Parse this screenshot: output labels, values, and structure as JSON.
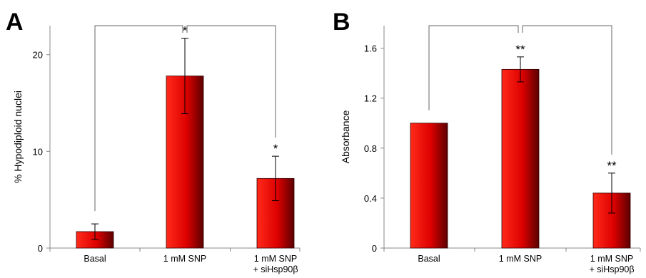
{
  "panels": [
    {
      "panel_label": "A",
      "chart_data": {
        "type": "bar",
        "ylabel": "% Hypodiploid nuclei",
        "xlabel": "",
        "ylim": [
          0,
          23
        ],
        "yticks": [
          0,
          10,
          20
        ],
        "categories": [
          [
            "Basal"
          ],
          [
            "1 mM SNP"
          ],
          [
            "1 mM SNP",
            "+ siHsp90β"
          ]
        ],
        "values": [
          1.7,
          17.8,
          7.2
        ],
        "errors": [
          0.8,
          3.9,
          2.3
        ],
        "significance": [
          "",
          "*",
          "*"
        ],
        "bar_color": "#dd0000",
        "comparison_brackets": [
          {
            "from": 0,
            "to": 1
          },
          {
            "from": 1,
            "to": 2
          }
        ]
      }
    },
    {
      "panel_label": "B",
      "chart_data": {
        "type": "bar",
        "ylabel": "Absorbance",
        "xlabel": "",
        "ylim": [
          0,
          1.78
        ],
        "yticks": [
          0,
          0.4,
          0.8,
          1.2,
          1.6
        ],
        "categories": [
          [
            "Basal"
          ],
          [
            "1 mM SNP"
          ],
          [
            "1 mM SNP",
            "+ siHsp90β"
          ]
        ],
        "values": [
          1.0,
          1.43,
          0.44
        ],
        "errors": [
          0,
          0.1,
          0.16
        ],
        "significance": [
          "",
          "**",
          "**"
        ],
        "bar_color": "#dd0000",
        "comparison_brackets": [
          {
            "from": 0,
            "to": 1
          },
          {
            "from": 1,
            "to": 2
          }
        ]
      }
    }
  ]
}
